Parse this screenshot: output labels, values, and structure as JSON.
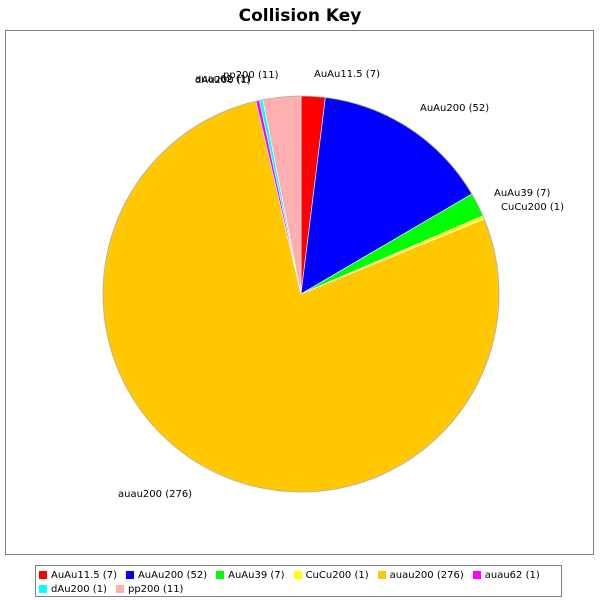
{
  "chart_data": {
    "type": "pie",
    "title": "Collision Key",
    "slices": [
      {
        "label": "AuAu11.5 (7)",
        "name": "AuAu11.5",
        "value": 7,
        "color": "#FF0000"
      },
      {
        "label": "AuAu200 (52)",
        "name": "AuAu200",
        "value": 52,
        "color": "#0000FF"
      },
      {
        "label": "AuAu39 (7)",
        "name": "AuAu39",
        "value": 7,
        "color": "#00FF00"
      },
      {
        "label": "CuCu200 (1)",
        "name": "CuCu200",
        "value": 1,
        "color": "#FFFF00"
      },
      {
        "label": "auau200 (276)",
        "name": "auau200",
        "value": 276,
        "color": "#FFC800"
      },
      {
        "label": "auau62 (1)",
        "name": "auau62",
        "value": 1,
        "color": "#FF00FF"
      },
      {
        "label": "dAu200 (1)",
        "name": "dAu200",
        "value": 1,
        "color": "#00FFFF"
      },
      {
        "label": "pp200 (11)",
        "name": "pp200",
        "value": 11,
        "color": "#FFAFAF"
      }
    ],
    "legend_placement": "bottom"
  }
}
